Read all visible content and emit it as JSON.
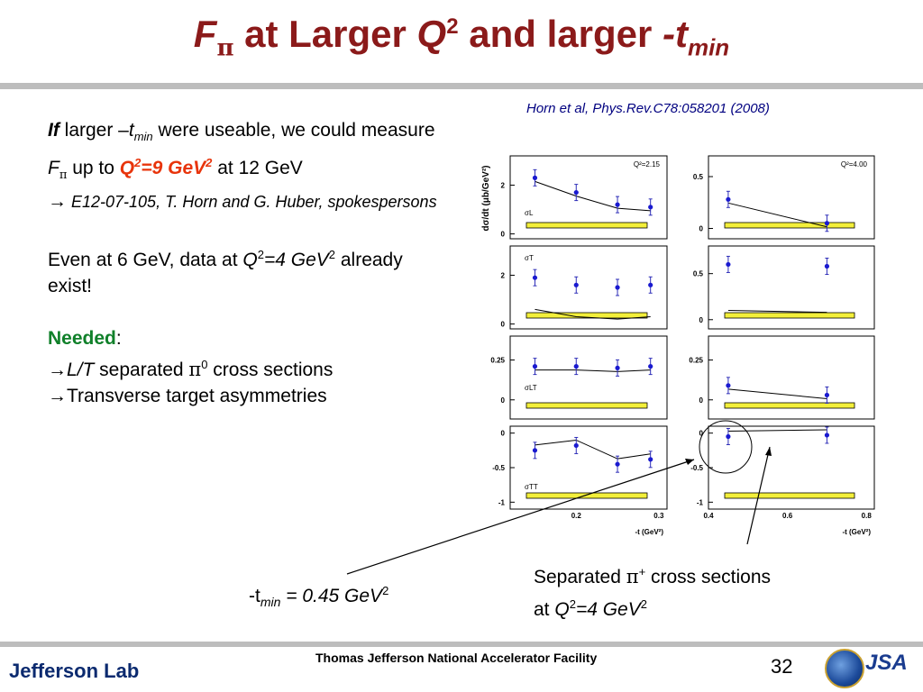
{
  "title": {
    "part1_F": "F",
    "part1_pi": "π",
    "part2": " at Larger ",
    "Q": "Q",
    "Q_sup": "2",
    "part3": " and larger ",
    "t": "-t",
    "t_sub": "min"
  },
  "citation": "Horn et al, Phys.Rev.C78:058201 (2008)",
  "body": {
    "if": "If",
    "p1a": " larger –",
    "p1_t": "t",
    "p1_tsub": "min",
    "p1b": " were useable, we could measure ",
    "p1_F": "F",
    "p1_pi": "π",
    "p1c": " up to ",
    "p1_Q": "Q",
    "p1_Qsup": "2",
    "p1_eq": "=9 GeV",
    "p1_gevsup": "2",
    "p1d": " at 12 GeV",
    "p1_arrow": "→",
    "p1_exp": " E12-07-105, T. Horn and G. Huber, spokespersons",
    "p2a": "Even at 6 GeV, data at ",
    "p2_Q": "Q",
    "p2_Qsup": "2",
    "p2_eq": "=4 GeV",
    "p2_sup": "2",
    "p2b": " already exist!",
    "needed": "Needed",
    "colon": ":",
    "arrow": "→",
    "lt": "L/T",
    "sep": " separated ",
    "pi0": "π",
    "pi0_sup": "0",
    "cross": " cross sections",
    "trans": "Transverse target asymmetries"
  },
  "notes": {
    "tmin_a": "-t",
    "tmin_sub": "min",
    "tmin_b": " = 0.45 GeV",
    "tmin_sup": "2",
    "sep_a": "Separated ",
    "sep_pi": "π",
    "sep_pi_sup": "+",
    "sep_b": " cross sections",
    "sep_at": "at ",
    "sep_Q": "Q",
    "sep_Qsup": "2",
    "sep_eq": "=4 GeV",
    "sep_sup": "2"
  },
  "footer": {
    "lab": "Jefferson Lab",
    "facility": "Thomas Jefferson National Accelerator Facility",
    "page": "32",
    "jsa": "JSA"
  },
  "chart_data": {
    "type": "scatter",
    "ylabel": "dσ/dt (μb/GeV²)",
    "panels_left": {
      "label": "Q²=2.15",
      "xlabel": "-t (GeV²)",
      "x_ticks": [
        "0.2",
        "0.3"
      ],
      "x": [
        0.15,
        0.2,
        0.25,
        0.29
      ],
      "rows": [
        {
          "name": "σL",
          "y_ticks": [
            "2",
            "0"
          ],
          "values": [
            2.3,
            1.7,
            1.2,
            1.1
          ]
        },
        {
          "name": "σT",
          "y_ticks": [
            "2",
            "0"
          ],
          "values": [
            1.9,
            1.6,
            1.5,
            1.6
          ]
        },
        {
          "name": "σLT",
          "y_ticks": [
            "0.25",
            "0"
          ],
          "values": [
            0.21,
            0.21,
            0.2,
            0.21
          ]
        },
        {
          "name": "σTT",
          "y_ticks": [
            "0",
            "-0.5",
            "-1"
          ],
          "values": [
            -0.25,
            -0.18,
            -0.45,
            -0.38
          ]
        }
      ]
    },
    "panels_right": {
      "label": "Q²=4.00",
      "xlabel": "-t (GeV²)",
      "x_ticks": [
        "0.4",
        "0.6",
        "0.8"
      ],
      "x": [
        0.45,
        0.7
      ],
      "rows": [
        {
          "name": "σL",
          "y_ticks": [
            "0.5",
            "0"
          ],
          "values": [
            0.28,
            0.05
          ]
        },
        {
          "name": "σT",
          "y_ticks": [
            "0.5",
            "0"
          ],
          "values": [
            0.6,
            0.58
          ]
        },
        {
          "name": "σLT",
          "y_ticks": [
            "0.25",
            "0"
          ],
          "values": [
            0.09,
            0.03
          ]
        },
        {
          "name": "σTT",
          "y_ticks": [
            "0",
            "-0.5",
            "-1"
          ],
          "values": [
            -0.05,
            -0.03
          ]
        }
      ]
    }
  }
}
